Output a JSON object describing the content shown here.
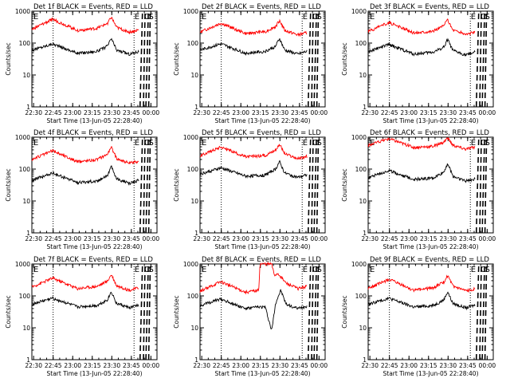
{
  "shared": {
    "type": "line",
    "xlabel": "Start Time (13-Jun-05 22:28:40)",
    "ylabel": "Counts/sec",
    "x_tick_labels": [
      "22:30",
      "22:45",
      "23:00",
      "23:15",
      "23:30",
      "23:45",
      "00:00"
    ],
    "x_tick_minutes": [
      1.33,
      16.33,
      31.33,
      46.33,
      61.33,
      76.33,
      91.33
    ],
    "xlim_minutes": [
      0,
      96
    ],
    "y_scale": "log",
    "ylim": [
      1,
      1000
    ],
    "y_tick_labels": [
      "1",
      "10",
      "100",
      "1000"
    ],
    "y_tick_values": [
      1,
      10,
      100,
      1000
    ],
    "legend": "BLACK = Events, RED = LLD",
    "colors": {
      "events": "#000000",
      "lld": "#ff0000"
    },
    "dotted_marker_minutes": [
      16.3,
      78.4
    ],
    "dashed_marker_minutes": [
      83.0,
      85.0,
      87.5,
      89.0
    ],
    "markers": {
      "E": "E",
      "C": "C",
      "S": "S"
    }
  },
  "chart_data": [
    {
      "type": "line",
      "title": "Det 1f BLACK = Events, RED = LLD",
      "series": [
        {
          "name": "Events",
          "color": "#000000",
          "key_points": [
            [
              0,
              60
            ],
            [
              16,
              95
            ],
            [
              35,
              48
            ],
            [
              50,
              55
            ],
            [
              58,
              80
            ],
            [
              61,
              140
            ],
            [
              65,
              60
            ],
            [
              75,
              45
            ],
            [
              82,
              55
            ]
          ]
        },
        {
          "name": "LLD",
          "color": "#ff0000",
          "key_points": [
            [
              0,
              270
            ],
            [
              16,
              560
            ],
            [
              35,
              250
            ],
            [
              50,
              290
            ],
            [
              58,
              420
            ],
            [
              61,
              650
            ],
            [
              65,
              310
            ],
            [
              75,
              220
            ],
            [
              82,
              260
            ]
          ]
        }
      ]
    },
    {
      "type": "line",
      "title": "Det 2f BLACK = Events, RED = LLD",
      "series": [
        {
          "name": "Events",
          "color": "#000000",
          "key_points": [
            [
              0,
              60
            ],
            [
              16,
              95
            ],
            [
              35,
              48
            ],
            [
              50,
              55
            ],
            [
              58,
              80
            ],
            [
              61,
              140
            ],
            [
              65,
              60
            ],
            [
              75,
              45
            ],
            [
              82,
              55
            ]
          ]
        },
        {
          "name": "LLD",
          "color": "#ff0000",
          "key_points": [
            [
              0,
              220
            ],
            [
              16,
              420
            ],
            [
              35,
              200
            ],
            [
              50,
              230
            ],
            [
              58,
              330
            ],
            [
              61,
              520
            ],
            [
              65,
              250
            ],
            [
              75,
              180
            ],
            [
              82,
              210
            ]
          ]
        }
      ]
    },
    {
      "type": "line",
      "title": "Det 3f BLACK = Events, RED = LLD",
      "series": [
        {
          "name": "Events",
          "color": "#000000",
          "key_points": [
            [
              0,
              55
            ],
            [
              16,
              90
            ],
            [
              35,
              45
            ],
            [
              50,
              52
            ],
            [
              58,
              75
            ],
            [
              61,
              130
            ],
            [
              65,
              58
            ],
            [
              75,
              42
            ],
            [
              82,
              52
            ]
          ]
        },
        {
          "name": "LLD",
          "color": "#ff0000",
          "key_points": [
            [
              0,
              230
            ],
            [
              16,
              440
            ],
            [
              35,
              210
            ],
            [
              50,
              240
            ],
            [
              58,
              350
            ],
            [
              61,
              540
            ],
            [
              65,
              260
            ],
            [
              75,
              190
            ],
            [
              82,
              220
            ]
          ]
        }
      ]
    },
    {
      "type": "line",
      "title": "Det 4f BLACK = Events, RED = LLD",
      "series": [
        {
          "name": "Events",
          "color": "#000000",
          "key_points": [
            [
              0,
              45
            ],
            [
              16,
              75
            ],
            [
              35,
              38
            ],
            [
              50,
              42
            ],
            [
              58,
              65
            ],
            [
              61,
              120
            ],
            [
              65,
              50
            ],
            [
              75,
              35
            ],
            [
              82,
              45
            ]
          ]
        },
        {
          "name": "LLD",
          "color": "#ff0000",
          "key_points": [
            [
              0,
              200
            ],
            [
              16,
              380
            ],
            [
              35,
              170
            ],
            [
              50,
              200
            ],
            [
              58,
              300
            ],
            [
              61,
              480
            ],
            [
              65,
              220
            ],
            [
              75,
              150
            ],
            [
              82,
              180
            ]
          ]
        }
      ]
    },
    {
      "type": "line",
      "title": "Det 5f BLACK = Events, RED = LLD",
      "series": [
        {
          "name": "Events",
          "color": "#000000",
          "key_points": [
            [
              0,
              70
            ],
            [
              16,
              110
            ],
            [
              35,
              60
            ],
            [
              50,
              65
            ],
            [
              58,
              100
            ],
            [
              61,
              170
            ],
            [
              65,
              75
            ],
            [
              75,
              55
            ],
            [
              82,
              65
            ]
          ]
        },
        {
          "name": "LLD",
          "color": "#ff0000",
          "key_points": [
            [
              0,
              260
            ],
            [
              16,
              500
            ],
            [
              35,
              240
            ],
            [
              50,
              270
            ],
            [
              58,
              400
            ],
            [
              61,
              610
            ],
            [
              65,
              300
            ],
            [
              75,
              210
            ],
            [
              82,
              250
            ]
          ]
        }
      ]
    },
    {
      "type": "line",
      "title": "Det 6f BLACK = Events, RED = LLD",
      "series": [
        {
          "name": "Events",
          "color": "#000000",
          "key_points": [
            [
              0,
              55
            ],
            [
              16,
              90
            ],
            [
              35,
              48
            ],
            [
              50,
              52
            ],
            [
              58,
              80
            ],
            [
              61,
              150
            ],
            [
              65,
              60
            ],
            [
              75,
              42
            ],
            [
              82,
              50
            ]
          ]
        },
        {
          "name": "LLD",
          "color": "#ff0000",
          "key_points": [
            [
              0,
              550
            ],
            [
              16,
              900
            ],
            [
              35,
              480
            ],
            [
              50,
              520
            ],
            [
              58,
              700
            ],
            [
              61,
              950
            ],
            [
              65,
              560
            ],
            [
              75,
              420
            ],
            [
              82,
              500
            ]
          ]
        }
      ]
    },
    {
      "type": "line",
      "title": "Det 7f BLACK = Events, RED = LLD",
      "series": [
        {
          "name": "Events",
          "color": "#000000",
          "key_points": [
            [
              0,
              55
            ],
            [
              16,
              85
            ],
            [
              35,
              45
            ],
            [
              50,
              50
            ],
            [
              58,
              75
            ],
            [
              61,
              135
            ],
            [
              65,
              58
            ],
            [
              75,
              42
            ],
            [
              82,
              52
            ]
          ]
        },
        {
          "name": "LLD",
          "color": "#ff0000",
          "key_points": [
            [
              0,
              190
            ],
            [
              16,
              360
            ],
            [
              35,
              170
            ],
            [
              50,
              200
            ],
            [
              58,
              290
            ],
            [
              61,
              470
            ],
            [
              65,
              210
            ],
            [
              75,
              150
            ],
            [
              82,
              180
            ]
          ]
        }
      ]
    },
    {
      "type": "line",
      "title": "Det 8f BLACK = Events, RED = LLD",
      "series": [
        {
          "name": "Events",
          "color": "#000000",
          "key_points": [
            [
              0,
              50
            ],
            [
              16,
              80
            ],
            [
              35,
              40
            ],
            [
              45,
              45
            ],
            [
              50,
              45
            ],
            [
              55,
              8
            ],
            [
              58,
              60
            ],
            [
              62,
              150
            ],
            [
              66,
              55
            ],
            [
              75,
              40
            ],
            [
              82,
              48
            ]
          ]
        },
        {
          "name": "LLD",
          "color": "#ff0000",
          "key_points": [
            [
              0,
              140
            ],
            [
              16,
              280
            ],
            [
              35,
              130
            ],
            [
              45,
              150
            ],
            [
              46,
              1000
            ],
            [
              50,
              1000
            ],
            [
              55,
              1000
            ],
            [
              57,
              450
            ],
            [
              60,
              500
            ],
            [
              66,
              250
            ],
            [
              75,
              170
            ],
            [
              82,
              200
            ]
          ]
        }
      ]
    },
    {
      "type": "line",
      "title": "Det 9f BLACK = Events, RED = LLD",
      "series": [
        {
          "name": "Events",
          "color": "#000000",
          "key_points": [
            [
              0,
              55
            ],
            [
              16,
              85
            ],
            [
              35,
              45
            ],
            [
              50,
              50
            ],
            [
              58,
              75
            ],
            [
              61,
              135
            ],
            [
              65,
              58
            ],
            [
              75,
              42
            ],
            [
              82,
              52
            ]
          ]
        },
        {
          "name": "LLD",
          "color": "#ff0000",
          "key_points": [
            [
              0,
              170
            ],
            [
              16,
              330
            ],
            [
              35,
              150
            ],
            [
              50,
              180
            ],
            [
              58,
              270
            ],
            [
              61,
              430
            ],
            [
              65,
              200
            ],
            [
              75,
              140
            ],
            [
              82,
              170
            ]
          ]
        }
      ]
    }
  ]
}
